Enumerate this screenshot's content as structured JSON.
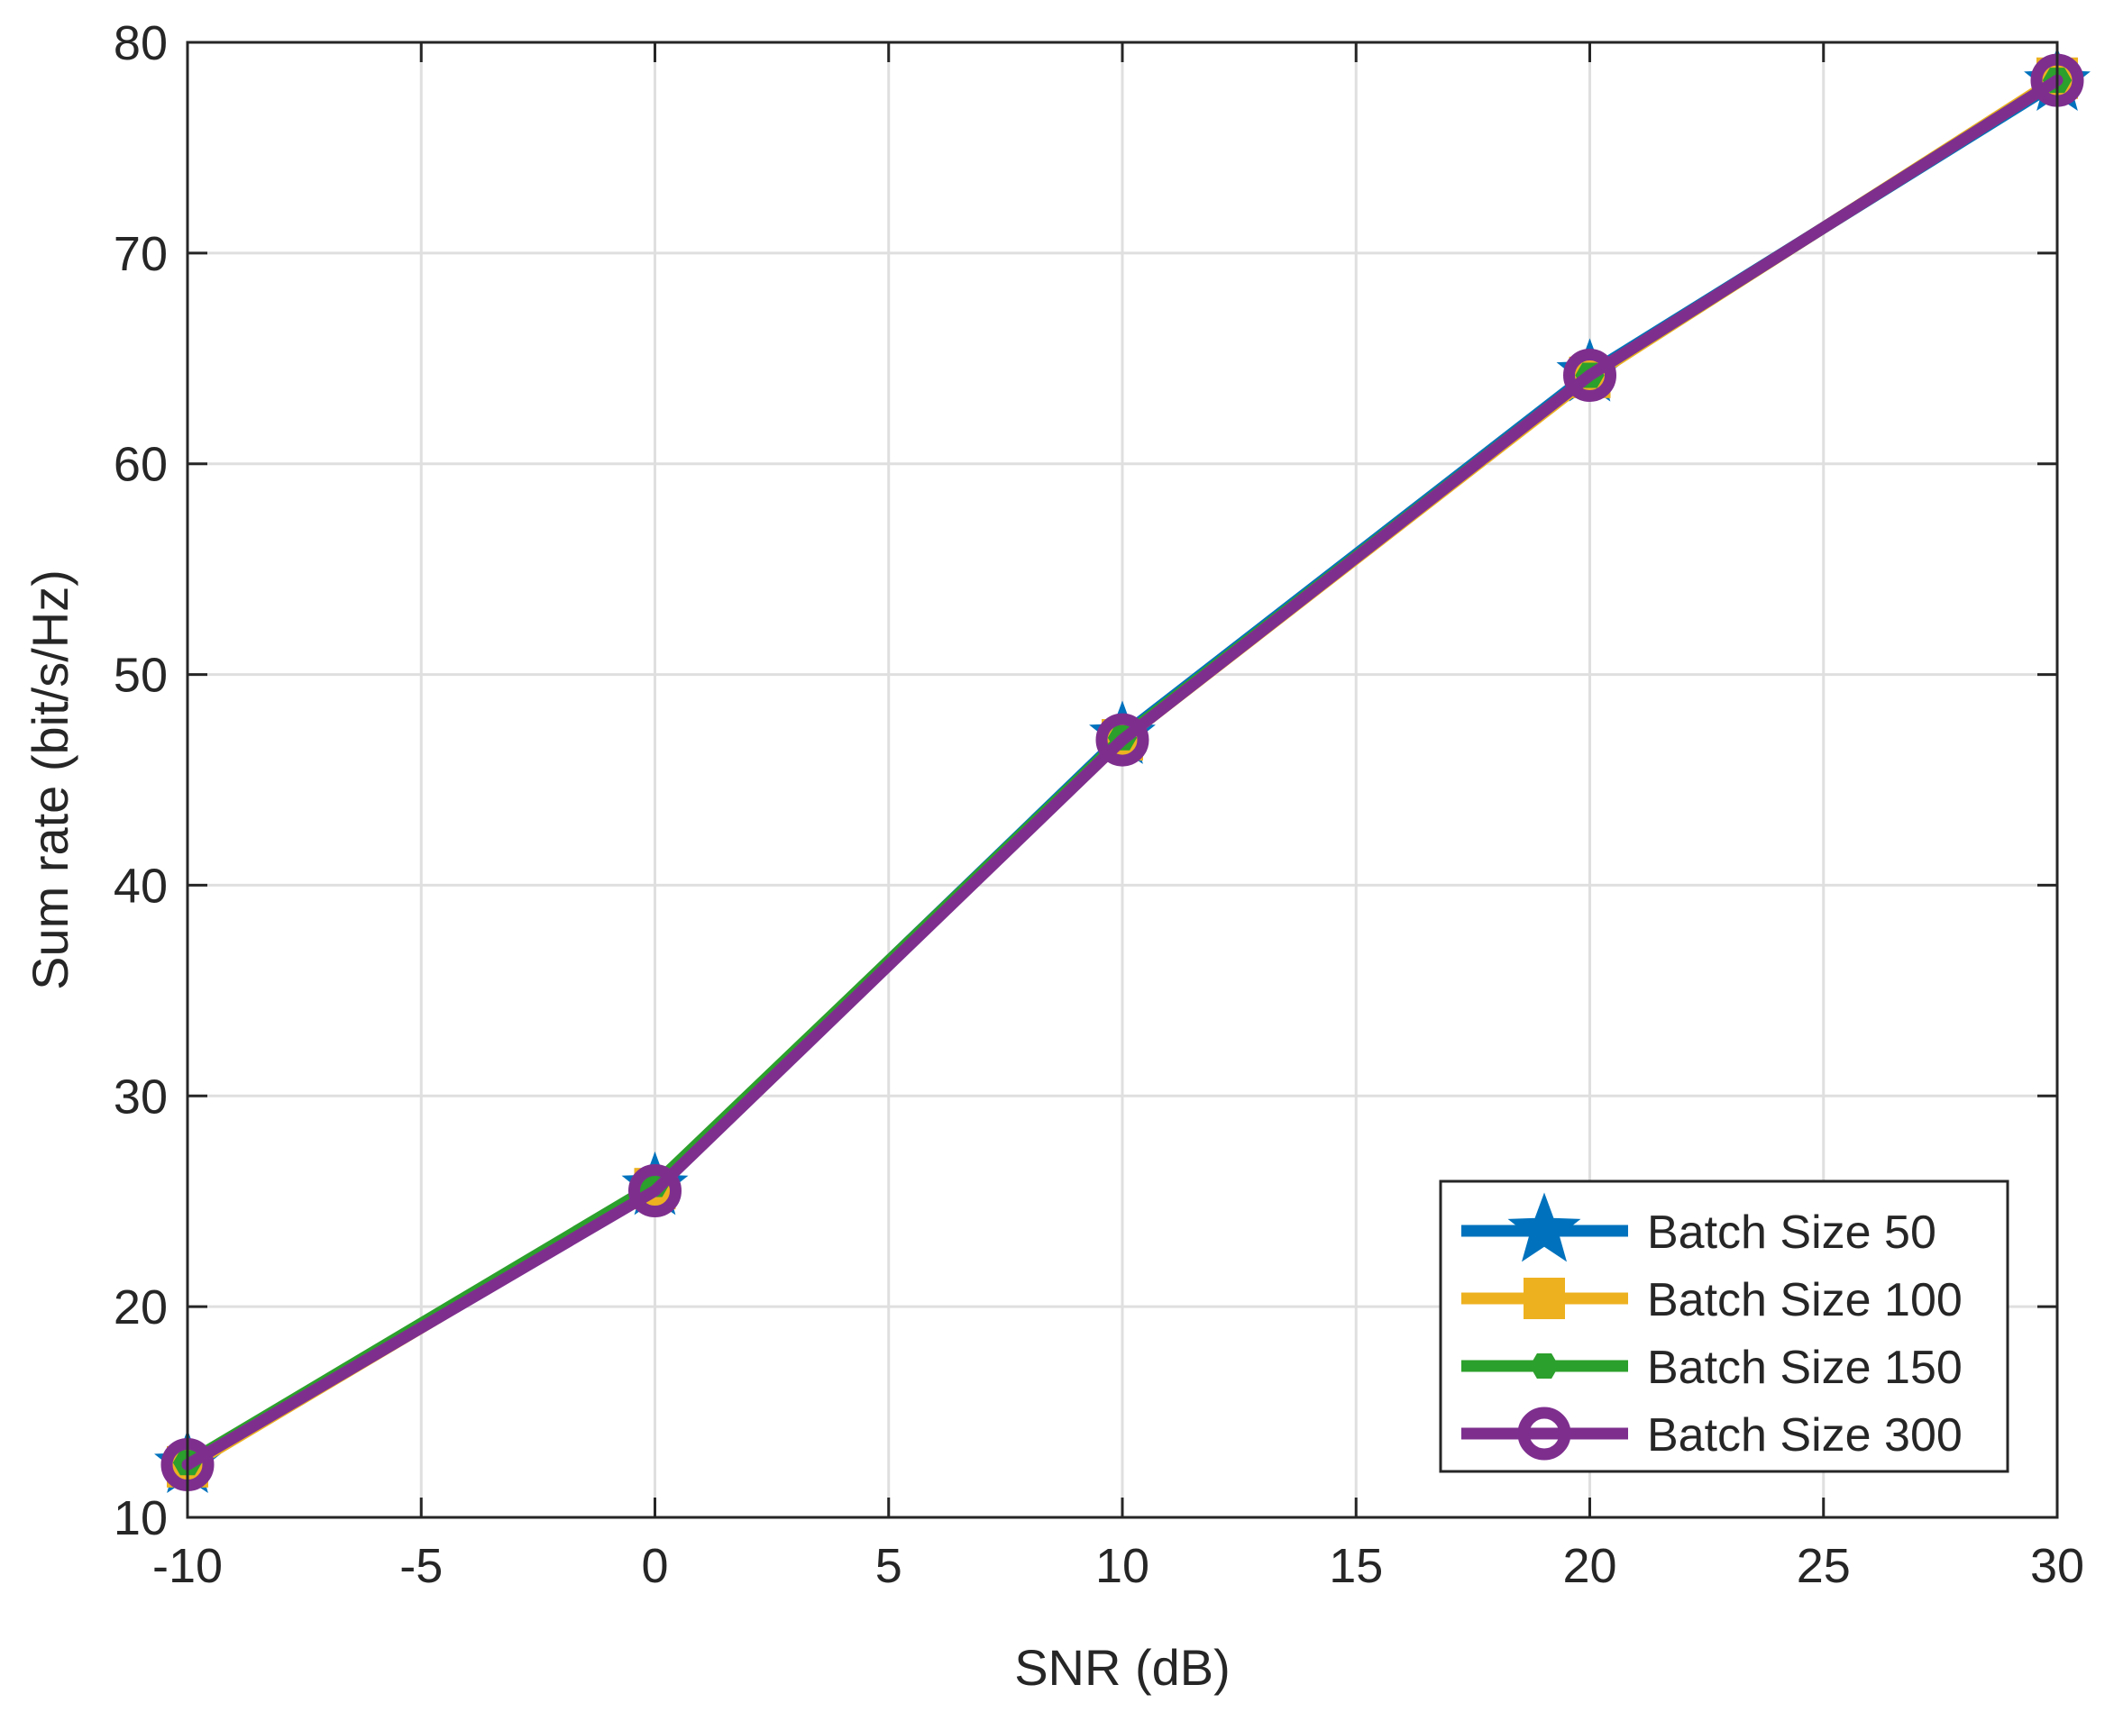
{
  "chart_data": {
    "type": "line",
    "title": "",
    "xlabel": "SNR (dB)",
    "ylabel": "Sum rate (bit/s/Hz)",
    "xlim": [
      -10,
      30
    ],
    "ylim": [
      10,
      80
    ],
    "xticks": [
      -10,
      -5,
      0,
      5,
      10,
      15,
      20,
      25,
      30
    ],
    "xtick_labels": [
      "-10",
      "-5",
      "0",
      "5",
      "10",
      "15",
      "20",
      "25",
      "30"
    ],
    "yticks": [
      10,
      20,
      30,
      40,
      50,
      60,
      70,
      80
    ],
    "ytick_labels": [
      "10",
      "20",
      "30",
      "40",
      "50",
      "60",
      "70",
      "80"
    ],
    "grid": true,
    "legend_position": "bottom-right",
    "x": [
      -10,
      0,
      10,
      20,
      30
    ],
    "series": [
      {
        "name": "Batch Size 50",
        "marker": "star",
        "color": "#0072BD",
        "values": [
          12.5,
          25.7,
          47.1,
          64.3,
          78.1
        ]
      },
      {
        "name": "Batch Size 100",
        "marker": "square",
        "color": "#EDB120",
        "values": [
          12.4,
          25.6,
          46.9,
          64.1,
          78.3
        ]
      },
      {
        "name": "Batch Size 150",
        "marker": "hexagon",
        "color": "#2CA02C",
        "values": [
          12.6,
          25.8,
          47.0,
          64.2,
          78.2
        ]
      },
      {
        "name": "Batch Size 300",
        "marker": "circle",
        "color": "#7E2F8E",
        "values": [
          12.5,
          25.5,
          46.9,
          64.2,
          78.2
        ]
      }
    ]
  }
}
